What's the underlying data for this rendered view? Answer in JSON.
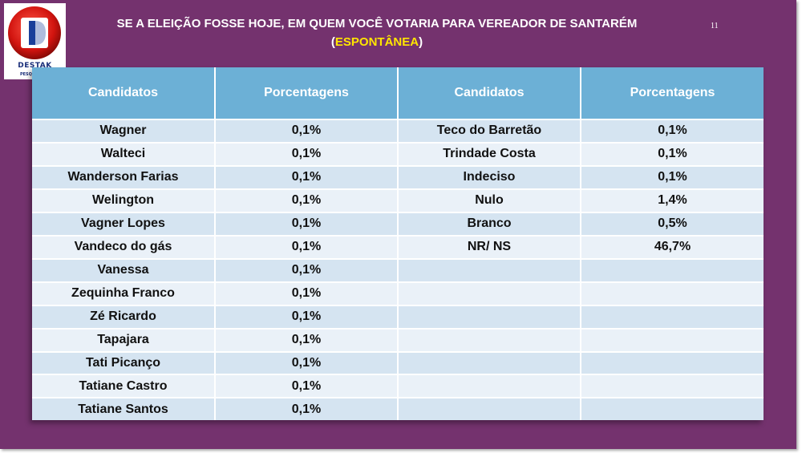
{
  "slide": {
    "title_line1": "SE A ELEIÇÃO FOSSE HOJE, EM QUEM VOCÊ VOTARIA PARA VEREADOR DE SANTARÉM",
    "title_paren_open": "(",
    "title_highlight": "ESPONTÂNEA",
    "title_paren_close": ")",
    "page_number": "11",
    "highlight_color": "#ffe600",
    "background_color": "#74326e"
  },
  "logo": {
    "name": "DESTAK",
    "subtitle": "PESQUISAS E"
  },
  "table": {
    "headers": [
      "Candidatos",
      "Porcentagens",
      "Candidatos",
      "Porcentagens"
    ],
    "header_color": "#6cb0d6",
    "rows": [
      [
        "Wagner",
        "0,1%",
        "Teco do Barretão",
        "0,1%"
      ],
      [
        "Walteci",
        "0,1%",
        "Trindade Costa",
        "0,1%"
      ],
      [
        "Wanderson Farias",
        "0,1%",
        "Indeciso",
        "0,1%"
      ],
      [
        "Welington",
        "0,1%",
        "Nulo",
        "1,4%"
      ],
      [
        "Vagner Lopes",
        "0,1%",
        "Branco",
        "0,5%"
      ],
      [
        "Vandeco do gás",
        "0,1%",
        "NR/ NS",
        "46,7%"
      ],
      [
        "Vanessa",
        "0,1%",
        "",
        ""
      ],
      [
        "Zequinha Franco",
        "0,1%",
        "",
        ""
      ],
      [
        "Zé Ricardo",
        "0,1%",
        "",
        ""
      ],
      [
        "Tapajara",
        "0,1%",
        "",
        ""
      ],
      [
        "Tati Picanço",
        "0,1%",
        "",
        ""
      ],
      [
        "Tatiane Castro",
        "0,1%",
        "",
        ""
      ],
      [
        "Tatiane Santos",
        "0,1%",
        "",
        ""
      ]
    ]
  }
}
